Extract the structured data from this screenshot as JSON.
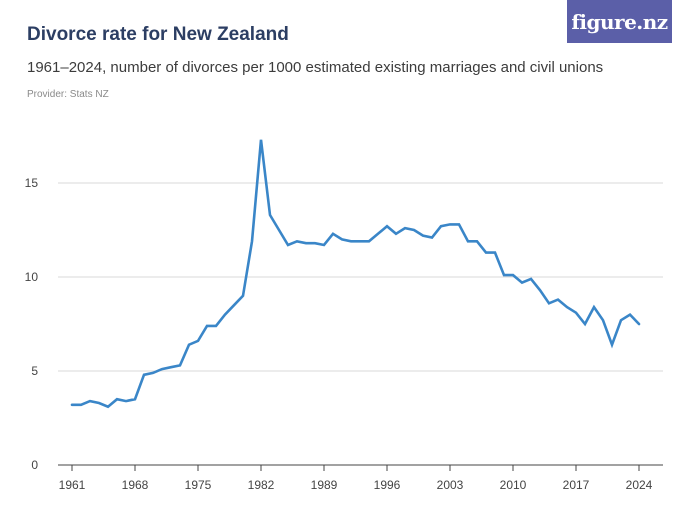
{
  "header": {
    "title": "Divorce rate for New Zealand",
    "subtitle": "1961–2024, number of divorces per 1000 estimated existing marriages and civil unions",
    "provider": "Provider: Stats NZ",
    "logo_text": "figure.nz"
  },
  "colors": {
    "line": "#3a86c8",
    "grid": "#d9d9d9",
    "logo_bg": "#5b5fa8",
    "title": "#2c3e63"
  },
  "chart_data": {
    "type": "line",
    "title": "Divorce rate for New Zealand",
    "subtitle": "1961–2024, number of divorces per 1000 estimated existing marriages and civil unions",
    "xlabel": "",
    "ylabel": "",
    "xlim": [
      1961,
      2024
    ],
    "ylim": [
      0,
      17.5
    ],
    "x_ticks": [
      1961,
      1968,
      1975,
      1982,
      1989,
      1996,
      2003,
      2010,
      2017,
      2024
    ],
    "y_ticks": [
      0,
      5,
      10,
      15
    ],
    "grid": "horizontal",
    "series": [
      {
        "x": [
          1961,
          1962,
          1963,
          1964,
          1965,
          1966,
          1967,
          1968,
          1969,
          1970,
          1971,
          1972,
          1973,
          1974,
          1975,
          1976,
          1977,
          1978,
          1979,
          1980,
          1981,
          1982,
          1983,
          1984,
          1985,
          1986,
          1987,
          1988,
          1989,
          1990,
          1991,
          1992,
          1993,
          1994,
          1995,
          1996,
          1997,
          1998,
          1999,
          2000,
          2001,
          2002,
          2003,
          2004,
          2005,
          2006,
          2007,
          2008,
          2009,
          2010,
          2011,
          2012,
          2013,
          2014,
          2015,
          2016,
          2017,
          2018,
          2019,
          2020,
          2021,
          2022,
          2023,
          2024
        ],
        "values": [
          3.2,
          3.2,
          3.4,
          3.3,
          3.1,
          3.5,
          3.4,
          3.5,
          4.8,
          4.9,
          5.1,
          5.2,
          5.3,
          6.4,
          6.6,
          7.4,
          7.4,
          8.0,
          8.5,
          9.0,
          11.9,
          17.3,
          13.3,
          12.5,
          11.7,
          11.9,
          11.8,
          11.8,
          11.7,
          12.3,
          12.0,
          11.9,
          11.9,
          11.9,
          12.3,
          12.7,
          12.3,
          12.6,
          12.5,
          12.2,
          12.1,
          12.7,
          12.8,
          12.8,
          11.9,
          11.9,
          11.3,
          11.3,
          10.1,
          10.1,
          9.7,
          9.9,
          9.3,
          8.6,
          8.8,
          8.4,
          8.1,
          7.5,
          8.4,
          7.7,
          6.4,
          7.7,
          8.0,
          7.5
        ]
      }
    ]
  }
}
